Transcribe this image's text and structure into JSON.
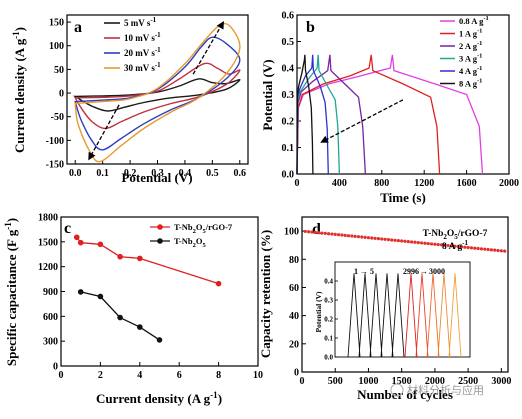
{
  "panels": {
    "a": {
      "letter": "a",
      "xlabel": "Potential (V)",
      "ylabel": "Current density (A g",
      "ylabel_sup": "-1",
      "xlim": [
        -0.03,
        0.63
      ],
      "ylim": [
        -150,
        165
      ],
      "xticks": [
        0.0,
        0.1,
        0.2,
        0.3,
        0.4,
        0.5,
        0.6
      ],
      "yticks": [
        -150,
        -100,
        -50,
        0,
        50,
        100,
        150
      ],
      "series": [
        {
          "name": "5 mV s",
          "sup": "-1",
          "color": "#1a1a1a",
          "peak": [
            0.45,
            30
          ],
          "top": [
            [
              0.0,
              -7
            ],
            [
              0.1,
              -6
            ],
            [
              0.2,
              -4
            ],
            [
              0.3,
              2
            ],
            [
              0.38,
              15
            ],
            [
              0.45,
              30
            ],
            [
              0.5,
              22
            ],
            [
              0.55,
              20
            ],
            [
              0.6,
              28
            ]
          ],
          "bot": [
            [
              0.6,
              28
            ],
            [
              0.55,
              8
            ],
            [
              0.45,
              -4
            ],
            [
              0.35,
              -10
            ],
            [
              0.25,
              -20
            ],
            [
              0.18,
              -30
            ],
            [
              0.12,
              -38
            ],
            [
              0.07,
              -30
            ],
            [
              0.03,
              -18
            ],
            [
              0.0,
              -7
            ]
          ]
        },
        {
          "name": "10 mV s",
          "sup": "-1",
          "color": "#c0303a",
          "peak": [
            0.47,
            62
          ],
          "top": [
            [
              0.0,
              -10
            ],
            [
              0.1,
              -9
            ],
            [
              0.2,
              -6
            ],
            [
              0.3,
              4
            ],
            [
              0.38,
              30
            ],
            [
              0.47,
              62
            ],
            [
              0.52,
              52
            ],
            [
              0.56,
              40
            ],
            [
              0.6,
              48
            ]
          ],
          "bot": [
            [
              0.6,
              48
            ],
            [
              0.55,
              18
            ],
            [
              0.45,
              -8
            ],
            [
              0.35,
              -22
            ],
            [
              0.25,
              -40
            ],
            [
              0.17,
              -60
            ],
            [
              0.11,
              -75
            ],
            [
              0.06,
              -60
            ],
            [
              0.02,
              -30
            ],
            [
              0.0,
              -10
            ]
          ]
        },
        {
          "name": "20 mV s",
          "sup": "-1",
          "color": "#2b3fbf",
          "peak": [
            0.5,
            118
          ],
          "top": [
            [
              0.0,
              -18
            ],
            [
              0.1,
              -15
            ],
            [
              0.2,
              -10
            ],
            [
              0.3,
              8
            ],
            [
              0.4,
              55
            ],
            [
              0.46,
              98
            ],
            [
              0.5,
              118
            ],
            [
              0.55,
              105
            ],
            [
              0.6,
              70
            ]
          ],
          "bot": [
            [
              0.6,
              70
            ],
            [
              0.55,
              30
            ],
            [
              0.45,
              -10
            ],
            [
              0.35,
              -35
            ],
            [
              0.25,
              -65
            ],
            [
              0.17,
              -95
            ],
            [
              0.1,
              -120
            ],
            [
              0.06,
              -100
            ],
            [
              0.02,
              -55
            ],
            [
              0.0,
              -18
            ]
          ]
        },
        {
          "name": "30 mV s",
          "sup": "-1",
          "color": "#e89a2e",
          "peak": [
            0.53,
            145
          ],
          "top": [
            [
              0.0,
              -22
            ],
            [
              0.1,
              -18
            ],
            [
              0.2,
              -12
            ],
            [
              0.3,
              10
            ],
            [
              0.4,
              62
            ],
            [
              0.47,
              110
            ],
            [
              0.53,
              145
            ],
            [
              0.57,
              138
            ],
            [
              0.6,
              95
            ]
          ],
          "bot": [
            [
              0.6,
              95
            ],
            [
              0.55,
              40
            ],
            [
              0.45,
              -10
            ],
            [
              0.35,
              -40
            ],
            [
              0.25,
              -75
            ],
            [
              0.17,
              -110
            ],
            [
              0.09,
              -145
            ],
            [
              0.05,
              -120
            ],
            [
              0.01,
              -65
            ],
            [
              0.0,
              -22
            ]
          ]
        }
      ]
    },
    "b": {
      "letter": "b",
      "xlabel": "Time (s)",
      "ylabel": "Potential (V)",
      "xlim": [
        0,
        2000
      ],
      "ylim": [
        0,
        0.6
      ],
      "xticks": [
        0,
        400,
        800,
        1200,
        1600,
        2000
      ],
      "yticks": [
        0.0,
        0.1,
        0.2,
        0.3,
        0.4,
        0.5,
        0.6
      ],
      "series": [
        {
          "name": "0.8 A g",
          "sup": "-1",
          "color": "#e040e0",
          "pts": [
            [
              0,
              0
            ],
            [
              12,
              0.25
            ],
            [
              60,
              0.3
            ],
            [
              300,
              0.34
            ],
            [
              600,
              0.37
            ],
            [
              880,
              0.4
            ],
            [
              900,
              0.45
            ],
            [
              915,
              0.39
            ],
            [
              1300,
              0.34
            ],
            [
              1600,
              0.3
            ],
            [
              1720,
              0.18
            ],
            [
              1750,
              0
            ]
          ]
        },
        {
          "name": "1 A g",
          "sup": "-1",
          "color": "#e02020",
          "pts": [
            [
              0,
              0
            ],
            [
              12,
              0.25
            ],
            [
              50,
              0.3
            ],
            [
              250,
              0.34
            ],
            [
              500,
              0.37
            ],
            [
              680,
              0.4
            ],
            [
              700,
              0.45
            ],
            [
              715,
              0.39
            ],
            [
              1000,
              0.34
            ],
            [
              1260,
              0.29
            ],
            [
              1320,
              0.18
            ],
            [
              1345,
              0
            ]
          ]
        },
        {
          "name": "2 A g",
          "sup": "-1",
          "color": "#7a20a0",
          "pts": [
            [
              0,
              0
            ],
            [
              10,
              0.27
            ],
            [
              40,
              0.31
            ],
            [
              150,
              0.35
            ],
            [
              290,
              0.39
            ],
            [
              310,
              0.45
            ],
            [
              320,
              0.39
            ],
            [
              450,
              0.34
            ],
            [
              580,
              0.29
            ],
            [
              620,
              0.18
            ],
            [
              645,
              0
            ]
          ]
        },
        {
          "name": "3 A g",
          "sup": "-1",
          "color": "#20a890",
          "pts": [
            [
              0,
              0
            ],
            [
              8,
              0.28
            ],
            [
              30,
              0.31
            ],
            [
              110,
              0.36
            ],
            [
              190,
              0.4
            ],
            [
              200,
              0.45
            ],
            [
              208,
              0.39
            ],
            [
              290,
              0.33
            ],
            [
              360,
              0.28
            ],
            [
              385,
              0.18
            ],
            [
              400,
              0
            ]
          ]
        },
        {
          "name": "4 A g",
          "sup": "-1",
          "color": "#3030d0",
          "pts": [
            [
              0,
              0
            ],
            [
              6,
              0.29
            ],
            [
              25,
              0.32
            ],
            [
              80,
              0.37
            ],
            [
              140,
              0.4
            ],
            [
              148,
              0.45
            ],
            [
              155,
              0.39
            ],
            [
              220,
              0.33
            ],
            [
              265,
              0.27
            ],
            [
              285,
              0.17
            ],
            [
              295,
              0
            ]
          ]
        },
        {
          "name": "8 A g",
          "sup": "-1",
          "color": "#111111",
          "pts": [
            [
              0,
              0
            ],
            [
              4,
              0.3
            ],
            [
              15,
              0.33
            ],
            [
              45,
              0.38
            ],
            [
              70,
              0.43
            ],
            [
              75,
              0.45
            ],
            [
              80,
              0.39
            ],
            [
              110,
              0.33
            ],
            [
              135,
              0.25
            ],
            [
              145,
              0.12
            ],
            [
              150,
              0
            ]
          ]
        }
      ]
    },
    "c": {
      "letter": "c",
      "xlabel": "Current density (A g",
      "xlabel_sup": "-1",
      "ylabel": "Specific capacitance (F g",
      "ylabel_sup": "-1",
      "xlim": [
        0,
        10
      ],
      "ylim": [
        0,
        1800
      ],
      "xticks": [
        0,
        2,
        4,
        6,
        8,
        10
      ],
      "yticks": [
        0,
        300,
        600,
        900,
        1200,
        1500,
        1800
      ],
      "series": [
        {
          "name": "T-Nb",
          "sub": "2",
          "mid": "O",
          "sub2": "5",
          "tail": "/rGO-7",
          "color": "#e02020",
          "marker": "#e02020",
          "x": [
            0.8,
            1,
            2,
            3,
            4,
            8
          ],
          "y": [
            1555,
            1490,
            1470,
            1320,
            1300,
            995
          ]
        },
        {
          "name": "T-Nb",
          "sub": "2",
          "mid": "O",
          "sub2": "5",
          "tail": "",
          "color": "#111111",
          "marker": "#111111",
          "x": [
            1,
            2,
            3,
            4,
            5
          ],
          "y": [
            895,
            840,
            585,
            470,
            315
          ]
        }
      ]
    },
    "d": {
      "letter": "d",
      "xlabel": "Number of cycles",
      "ylabel": "Capacity retention (%)",
      "xlim": [
        0,
        3100
      ],
      "ylim": [
        0,
        110
      ],
      "xticks": [
        0,
        500,
        1000,
        1500,
        2000,
        2500,
        3000
      ],
      "yticks": [
        0,
        20,
        40,
        60,
        80,
        100
      ],
      "label1": "T-Nb",
      "label1_sub": "2",
      "label1_mid": "O",
      "label1_sub2": "5",
      "label1_tail": "/rGO-7",
      "label2": "8 A g",
      "label2_sup": "-1",
      "color": "#e03030",
      "retention_start": 100,
      "retention_end": 86,
      "inset": {
        "ylabel": "Potential (V)",
        "yticks": [
          0.0,
          0.1,
          0.2,
          0.3,
          0.4
        ],
        "range1_a": "1",
        "range1_b": "5",
        "range2_a": "2996",
        "range2_b": "3000",
        "colors2": [
          "#e02020",
          "#e8402a",
          "#f06a2a",
          "#f08a30",
          "#f0a030"
        ]
      }
    }
  },
  "watermark": "材料分析与应用"
}
